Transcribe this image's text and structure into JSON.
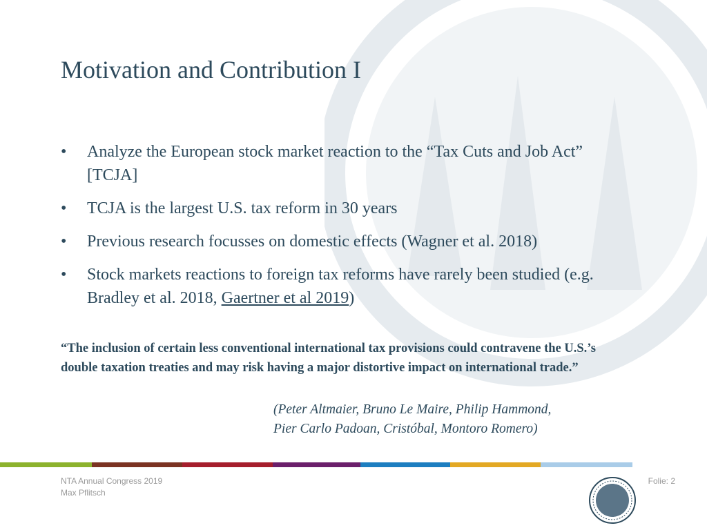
{
  "header": {
    "title": "Motivation and Contribution I"
  },
  "bullets": [
    {
      "text": "Analyze the European stock market reaction to the “Tax Cuts and Job Act” [TCJA]"
    },
    {
      "text": "TCJA is the largest U.S. tax reform in 30 years"
    },
    {
      "text": "Previous research focusses on domestic effects (Wagner et al. 2018)"
    },
    {
      "text": "Stock markets reactions to foreign tax reforms have rarely been studied (e.g. Bradley et al. 2018, ",
      "link": "Gaertner et al 2019",
      "after": ")"
    }
  ],
  "quote": {
    "text": "“The inclusion of certain less conventional international tax provisions could contravene the U.S.’s double taxation treaties and may risk having a major distortive impact on international trade.”",
    "attribution": [
      "(Peter Altmaier, Bruno Le Maire, Philip Hammond,",
      "Pier Carlo Padoan, Cristóbal, Montoro Romero)"
    ]
  },
  "footer": {
    "event": "NTA Annual Congress 2019",
    "author": "Max Pflitsch",
    "slide": "Folie: 2"
  }
}
